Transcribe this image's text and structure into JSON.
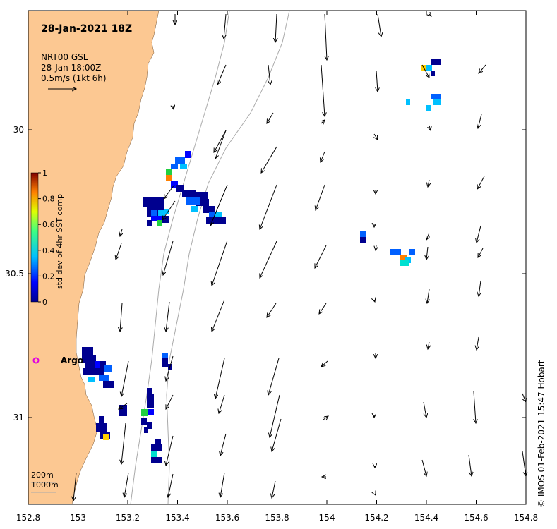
{
  "map": {
    "timestamp": "28-Jan-2021 18Z",
    "legend_lines": [
      "NRT00 GSL",
      "28-Jan 18:00Z",
      "0.5m/s (1kt 6h)"
    ],
    "colorbar": {
      "title": "std dev of 4hr SST comp",
      "ticks": [
        "0",
        "0.2",
        "0.4",
        "0.6",
        "0.8",
        "1"
      ],
      "range": [
        0,
        1
      ]
    },
    "x_ticks": [
      "152.8",
      "153",
      "153.2",
      "153.4",
      "153.6",
      "153.8",
      "154",
      "154.2",
      "154.4",
      "154.6",
      "154.8"
    ],
    "y_ticks": [
      "-30",
      "-30.5",
      "-31"
    ],
    "argo": {
      "label": "Argo",
      "lon": 152.83,
      "lat": -30.81
    },
    "bathymetry_labels": [
      "200m",
      "1000m"
    ],
    "credit": "© IMOS 01-Feb-2021 15:47 Hobart",
    "colors": {
      "land": "#fcc892",
      "argo": "#e000e0",
      "contour": "#aaaaaa"
    }
  }
}
